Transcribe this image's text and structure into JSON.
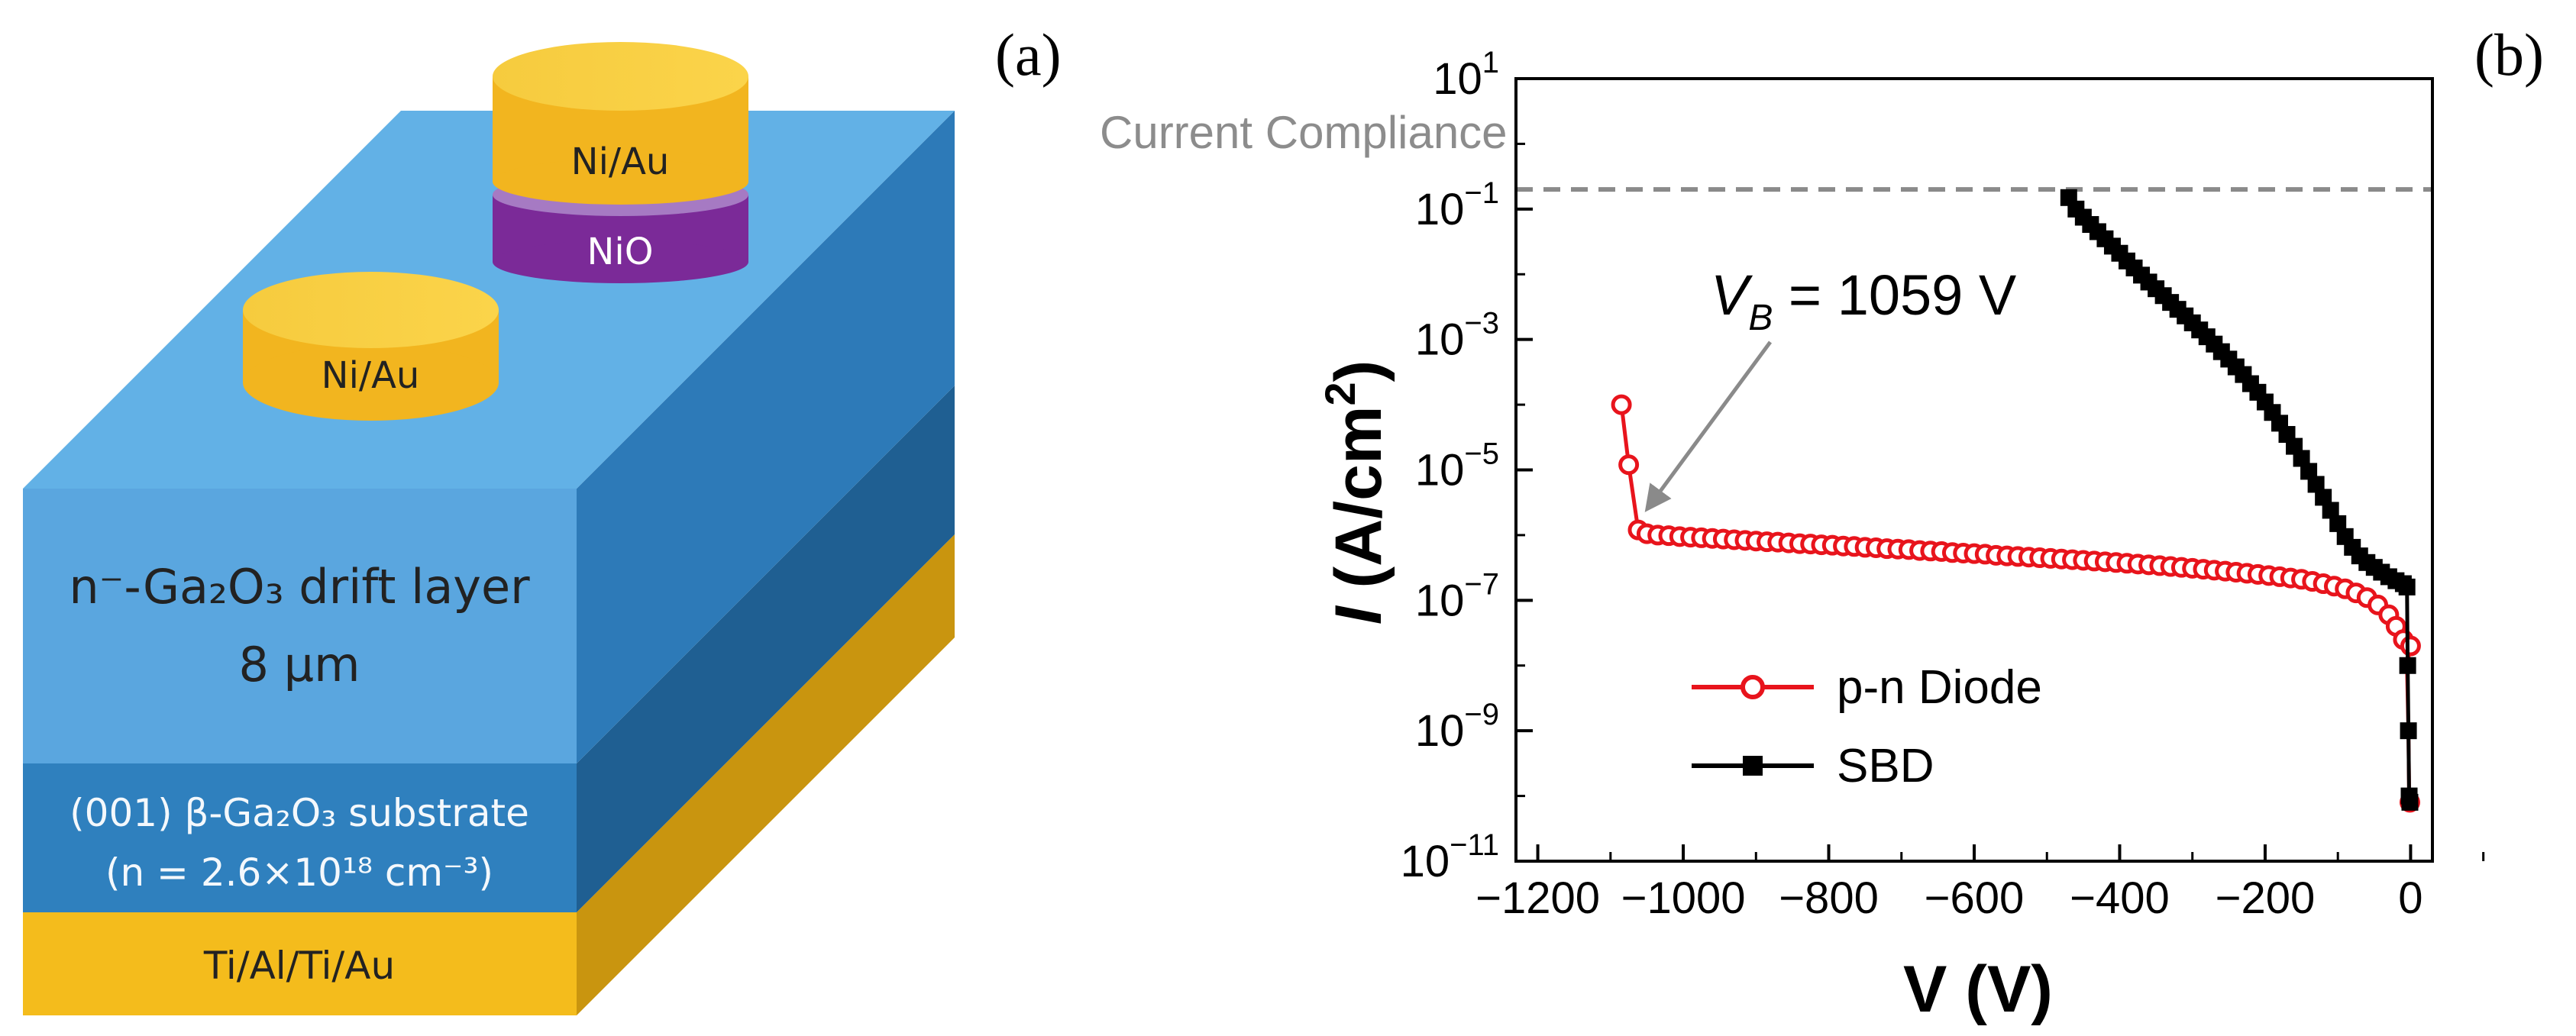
{
  "panel_a": {
    "label": "(a)",
    "layers": {
      "contact_top": "Ni/Au",
      "nio": "NiO",
      "contact_side": "Ni/Au",
      "drift_line1": "n⁻-Ga₂O₃ drift layer",
      "drift_line2": "8 µm",
      "substrate_line1": "(001) β-Ga₂O₃ substrate",
      "substrate_line2": "(n = 2.6×10¹⁸ cm⁻³)",
      "back_contact": "Ti/Al/Ti/Au"
    }
  },
  "chart_data": {
    "type": "scatter",
    "label": "(b)",
    "xlabel": "V (V)",
    "ylabel": "I (A/cm²)",
    "x_ticks": [
      "−1200",
      "−1000",
      "−800",
      "−600",
      "−400",
      "−200",
      "0"
    ],
    "xlim": [
      -1230,
      30
    ],
    "ylim": [
      1e-11,
      10
    ],
    "y_scale": "log",
    "y_ticks": [
      {
        "base": "10",
        "exp": "1",
        "value": 10
      },
      {
        "base": "10",
        "exp": "−1",
        "value": 0.1
      },
      {
        "base": "10",
        "exp": "−3",
        "value": 0.001
      },
      {
        "base": "10",
        "exp": "−5",
        "value": 1e-05
      },
      {
        "base": "10",
        "exp": "−7",
        "value": 1e-07
      },
      {
        "base": "10",
        "exp": "−9",
        "value": 1e-09
      },
      {
        "base": "10",
        "exp": "−11",
        "value": 1e-11
      }
    ],
    "compliance": {
      "label": "Current Compliance",
      "value": 0.2
    },
    "annotation": {
      "prefix": "V",
      "sub": "B",
      "text": " = 1059 V",
      "arrow_to": [
        -1059,
        2e-06
      ]
    },
    "legend": {
      "placement": "bottom-left"
    },
    "series": [
      {
        "name": "p-n Diode",
        "color": "#e8141c",
        "marker": "open-circle",
        "points": [
          [
            -1085,
            0.0001
          ],
          [
            -1075,
            1.2e-05
          ],
          [
            -1062,
            1.2e-06
          ],
          [
            -1050,
            1.05e-06
          ],
          [
            -1035,
            1e-06
          ],
          [
            -1020,
            9.8e-07
          ],
          [
            -1005,
            9.5e-07
          ],
          [
            -990,
            9.3e-07
          ],
          [
            -975,
            9.1e-07
          ],
          [
            -960,
            8.9e-07
          ],
          [
            -945,
            8.7e-07
          ],
          [
            -930,
            8.5e-07
          ],
          [
            -915,
            8.3e-07
          ],
          [
            -900,
            8.1e-07
          ],
          [
            -885,
            7.9e-07
          ],
          [
            -870,
            7.8e-07
          ],
          [
            -855,
            7.6e-07
          ],
          [
            -840,
            7.4e-07
          ],
          [
            -825,
            7.3e-07
          ],
          [
            -810,
            7.1e-07
          ],
          [
            -795,
            7e-07
          ],
          [
            -780,
            6.8e-07
          ],
          [
            -765,
            6.7e-07
          ],
          [
            -750,
            6.5e-07
          ],
          [
            -735,
            6.4e-07
          ],
          [
            -720,
            6.2e-07
          ],
          [
            -705,
            6.1e-07
          ],
          [
            -690,
            6e-07
          ],
          [
            -675,
            5.8e-07
          ],
          [
            -660,
            5.7e-07
          ],
          [
            -645,
            5.6e-07
          ],
          [
            -630,
            5.4e-07
          ],
          [
            -615,
            5.3e-07
          ],
          [
            -600,
            5.2e-07
          ],
          [
            -585,
            5.1e-07
          ],
          [
            -570,
            4.9e-07
          ],
          [
            -555,
            4.8e-07
          ],
          [
            -540,
            4.7e-07
          ],
          [
            -525,
            4.6e-07
          ],
          [
            -510,
            4.5e-07
          ],
          [
            -495,
            4.4e-07
          ],
          [
            -480,
            4.3e-07
          ],
          [
            -465,
            4.2e-07
          ],
          [
            -450,
            4.1e-07
          ],
          [
            -435,
            4e-07
          ],
          [
            -420,
            3.9e-07
          ],
          [
            -405,
            3.8e-07
          ],
          [
            -390,
            3.7e-07
          ],
          [
            -375,
            3.6e-07
          ],
          [
            -360,
            3.5e-07
          ],
          [
            -345,
            3.4e-07
          ],
          [
            -330,
            3.3e-07
          ],
          [
            -315,
            3.2e-07
          ],
          [
            -300,
            3.1e-07
          ],
          [
            -285,
            3e-07
          ],
          [
            -270,
            2.9e-07
          ],
          [
            -255,
            2.8e-07
          ],
          [
            -240,
            2.7e-07
          ],
          [
            -225,
            2.6e-07
          ],
          [
            -210,
            2.5e-07
          ],
          [
            -195,
            2.4e-07
          ],
          [
            -180,
            2.3e-07
          ],
          [
            -165,
            2.2e-07
          ],
          [
            -150,
            2.1e-07
          ],
          [
            -135,
            1.95e-07
          ],
          [
            -120,
            1.8e-07
          ],
          [
            -105,
            1.65e-07
          ],
          [
            -90,
            1.5e-07
          ],
          [
            -75,
            1.3e-07
          ],
          [
            -60,
            1.1e-07
          ],
          [
            -45,
            8.5e-08
          ],
          [
            -30,
            6e-08
          ],
          [
            -20,
            4e-08
          ],
          [
            -10,
            2.5e-08
          ],
          [
            0,
            2e-08
          ]
        ],
        "tail": [
          [
            -5,
            1e-08
          ],
          [
            -3,
            1e-09
          ],
          [
            -2,
            1e-10
          ],
          [
            -1,
            8e-11
          ]
        ]
      },
      {
        "name": "SBD",
        "color": "#000000",
        "marker": "filled-square",
        "points": [
          [
            -470,
            0.15
          ],
          [
            -460,
            0.1
          ],
          [
            -450,
            0.075
          ],
          [
            -440,
            0.058
          ],
          [
            -430,
            0.045
          ],
          [
            -420,
            0.035
          ],
          [
            -410,
            0.027
          ],
          [
            -400,
            0.021
          ],
          [
            -390,
            0.016
          ],
          [
            -380,
            0.0125
          ],
          [
            -370,
            0.0097
          ],
          [
            -360,
            0.0076
          ],
          [
            -350,
            0.006
          ],
          [
            -340,
            0.0047
          ],
          [
            -330,
            0.0037
          ],
          [
            -320,
            0.0029
          ],
          [
            -310,
            0.0023
          ],
          [
            -300,
            0.0018
          ],
          [
            -290,
            0.0014
          ],
          [
            -280,
            0.0011
          ],
          [
            -270,
            0.00085
          ],
          [
            -260,
            0.00065
          ],
          [
            -250,
            0.0005
          ],
          [
            -240,
            0.00038
          ],
          [
            -230,
            0.00029
          ],
          [
            -220,
            0.00021
          ],
          [
            -210,
            0.000155
          ],
          [
            -200,
            0.00011
          ],
          [
            -190,
            7.6e-05
          ],
          [
            -180,
            5.2e-05
          ],
          [
            -170,
            3.5e-05
          ],
          [
            -160,
            2.3e-05
          ],
          [
            -150,
            1.5e-05
          ],
          [
            -140,
            9.5e-06
          ],
          [
            -130,
            6e-06
          ],
          [
            -120,
            3.8e-06
          ],
          [
            -110,
            2.4e-06
          ],
          [
            -100,
            1.5e-06
          ],
          [
            -90,
            9.5e-07
          ],
          [
            -80,
            6.5e-07
          ],
          [
            -70,
            4.8e-07
          ],
          [
            -60,
            3.8e-07
          ],
          [
            -50,
            3.2e-07
          ],
          [
            -40,
            2.7e-07
          ],
          [
            -30,
            2.3e-07
          ],
          [
            -20,
            2e-07
          ],
          [
            -10,
            1.8e-07
          ],
          [
            -5,
            1.6e-07
          ],
          [
            -4,
            1e-08
          ],
          [
            -3,
            1e-09
          ],
          [
            -2,
            1e-10
          ],
          [
            -1,
            8e-11
          ]
        ]
      }
    ]
  }
}
